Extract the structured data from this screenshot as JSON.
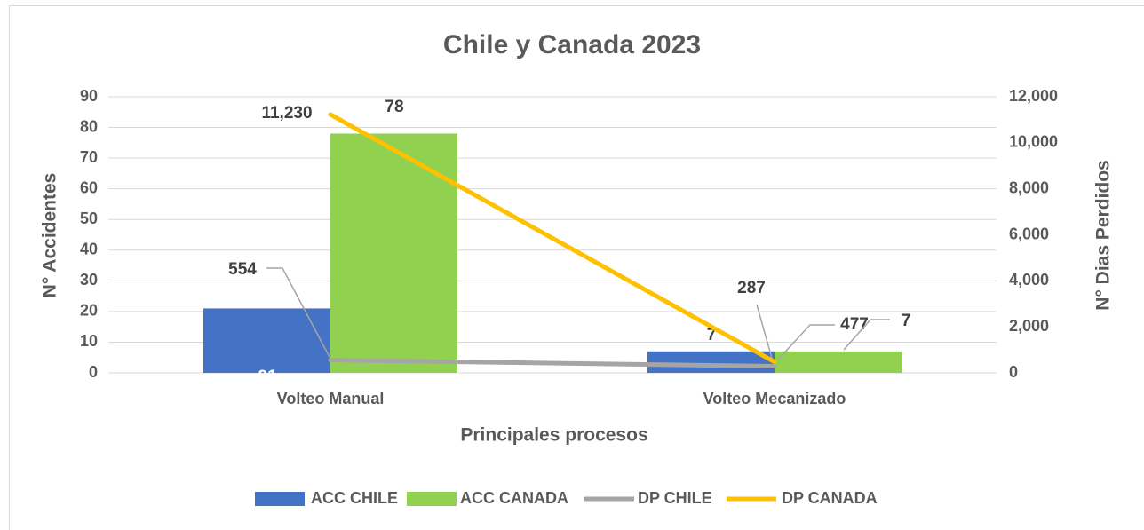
{
  "chart_data": {
    "type": "bar",
    "title": "Chile y Canada 2023",
    "x_label": "Principales procesos",
    "y_label": "N° Accidentes",
    "y2_label": "N° Dias Perdidos",
    "categories": [
      "Volteo Manual",
      "Volteo Mecanizado"
    ],
    "series": [
      {
        "name": "ACC CHILE",
        "type": "bar",
        "color": "#4472c4",
        "values": [
          21,
          7
        ]
      },
      {
        "name": "ACC CANADA",
        "type": "bar",
        "color": "#92d050",
        "values": [
          78,
          7
        ]
      },
      {
        "name": "DP CHILE",
        "type": "line",
        "axis": "y2",
        "color": "#a5a5a5",
        "values": [
          554,
          287
        ]
      },
      {
        "name": "DP CANADA",
        "type": "line",
        "axis": "y2",
        "color": "#ffc000",
        "values": [
          11230,
          477
        ],
        "value_labels": [
          "11,230",
          "477"
        ]
      }
    ],
    "ylim": [
      0,
      90
    ],
    "yticks": [
      0,
      10,
      20,
      30,
      40,
      50,
      60,
      70,
      80,
      90
    ],
    "y2lim": [
      0,
      12000
    ],
    "y2ticks": [
      0,
      {
        "value": 2000,
        "label": "2,000"
      },
      {
        "value": 4000,
        "label": "4,000"
      },
      {
        "value": 6000,
        "label": "6,000"
      },
      {
        "value": 8000,
        "label": "8,000"
      },
      {
        "value": 10000,
        "label": "10,000"
      },
      {
        "value": 12000,
        "label": "12,000"
      }
    ],
    "grid": true,
    "legend": "bottom"
  }
}
